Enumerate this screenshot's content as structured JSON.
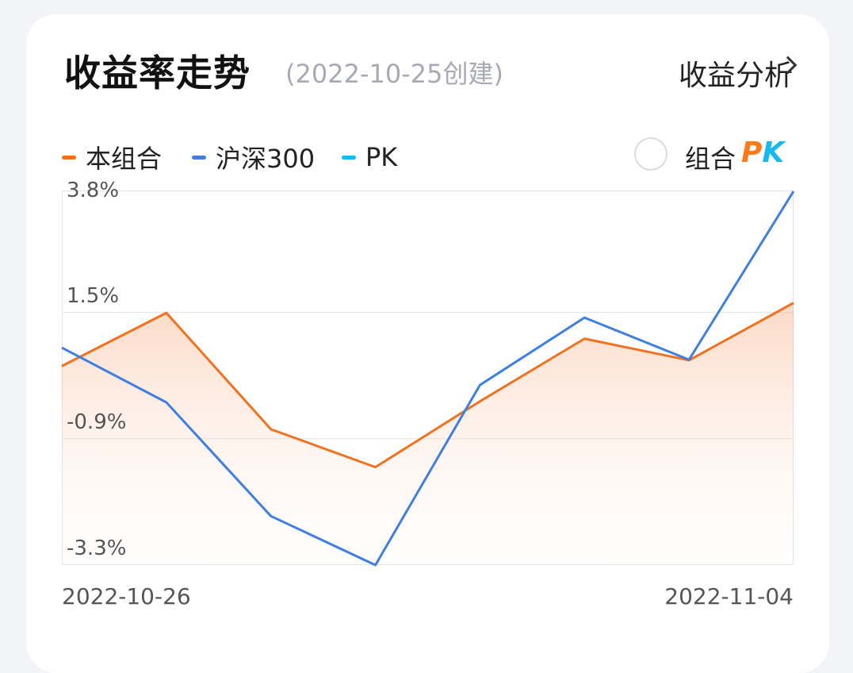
{
  "header": {
    "title": "收益率走势",
    "created": "(2022-10-25创建)",
    "analysis_label": "收益分析"
  },
  "legend": {
    "items": [
      {
        "label": "本组合",
        "color": "#f0721f"
      },
      {
        "label": "沪深300",
        "color": "#3f7fe0"
      },
      {
        "label": "PK",
        "color": "#18b8f2"
      }
    ],
    "pk_toggle_label": "组合",
    "pk_logo_p": "P",
    "pk_logo_k": "K"
  },
  "chart_data": {
    "type": "line",
    "x": [
      "2022-10-26",
      "",
      "",
      "",
      "",
      "",
      "",
      "2022-11-04"
    ],
    "series": [
      {
        "name": "本组合",
        "color": "#f0721f",
        "fill": true,
        "values": [
          0.48,
          1.49,
          -0.72,
          -1.44,
          -0.19,
          1.0,
          0.59,
          1.68
        ]
      },
      {
        "name": "沪深300",
        "color": "#3f7fe0",
        "fill": false,
        "values": [
          0.83,
          -0.21,
          -2.37,
          -3.3,
          0.12,
          1.4,
          0.6,
          3.8
        ]
      }
    ],
    "ylim": [
      -3.3,
      3.8
    ],
    "yticks": [
      "3.8%",
      "1.5%",
      "-0.9%",
      "-3.3%"
    ],
    "ytick_values": [
      3.8,
      1.5,
      -0.9,
      -3.3
    ],
    "xtick_labels": [
      "2022-10-26",
      "2022-11-04"
    ],
    "grid": true
  }
}
